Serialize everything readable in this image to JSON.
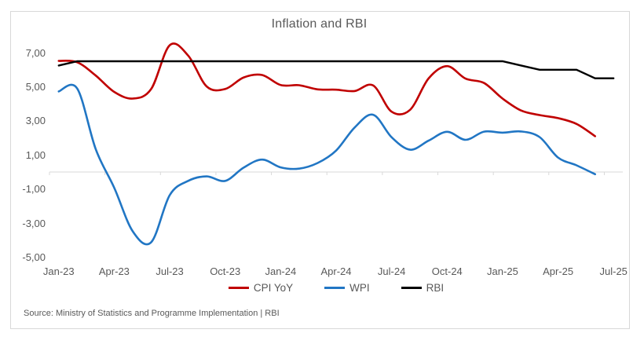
{
  "chart": {
    "title": "Inflation and RBI",
    "source_note": "Source: Ministry of Statistics and Programme Implementation | RBI"
  },
  "chart_data": {
    "type": "line",
    "title": "Inflation and RBI",
    "grid": false,
    "legend_position": "bottom",
    "ylim": [
      -5.6,
      7.6
    ],
    "y_ticks": [
      7,
      5,
      3,
      1,
      -1,
      -3,
      -5
    ],
    "y_tick_labels": [
      "7,00",
      "5,00",
      "3,00",
      "1,00",
      "-1,00",
      "-3,00",
      "-5,00"
    ],
    "x": [
      "Jan-23",
      "Feb-23",
      "Mar-23",
      "Apr-23",
      "May-23",
      "Jun-23",
      "Jul-23",
      "Aug-23",
      "Sep-23",
      "Oct-23",
      "Nov-23",
      "Dec-23",
      "Jan-24",
      "Feb-24",
      "Mar-24",
      "Apr-24",
      "May-24",
      "Jun-24",
      "Jul-24",
      "Aug-24",
      "Sep-24",
      "Oct-24",
      "Nov-24",
      "Dec-24",
      "Jan-25",
      "Feb-25",
      "Mar-25",
      "Apr-25",
      "May-25",
      "Jun-25",
      "Jul-25"
    ],
    "x_tick_labels": [
      "Jan-23",
      "Apr-23",
      "Jul-23",
      "Oct-23",
      "Jan-24",
      "Apr-24",
      "Jul-24",
      "Oct-24",
      "Jan-25",
      "Apr-25",
      "Jul-25"
    ],
    "x_tick_every": 3,
    "series": [
      {
        "name": "CPI YoY",
        "color": "#c00000",
        "smooth": true,
        "values": [
          6.52,
          6.44,
          5.66,
          4.7,
          4.31,
          4.87,
          7.44,
          6.83,
          5.02,
          4.87,
          5.55,
          5.69,
          5.1,
          5.09,
          4.85,
          4.83,
          4.75,
          5.08,
          3.54,
          3.65,
          5.49,
          6.21,
          5.48,
          5.22,
          4.31,
          3.61,
          3.34,
          3.16,
          2.82,
          2.1,
          null
        ]
      },
      {
        "name": "WPI",
        "color": "#2176c4",
        "smooth": true,
        "values": [
          4.73,
          4.9,
          1.34,
          -0.92,
          -3.48,
          -4.12,
          -1.36,
          -0.52,
          -0.26,
          -0.52,
          0.26,
          0.73,
          0.27,
          0.2,
          0.53,
          1.26,
          2.61,
          3.36,
          2.04,
          1.31,
          1.84,
          2.36,
          1.89,
          2.37,
          2.31,
          2.38,
          2.05,
          0.85,
          0.39,
          -0.13,
          null
        ]
      },
      {
        "name": "RBI",
        "color": "#000000",
        "smooth": false,
        "values": [
          6.25,
          6.5,
          6.5,
          6.5,
          6.5,
          6.5,
          6.5,
          6.5,
          6.5,
          6.5,
          6.5,
          6.5,
          6.5,
          6.5,
          6.5,
          6.5,
          6.5,
          6.5,
          6.5,
          6.5,
          6.5,
          6.5,
          6.5,
          6.5,
          6.5,
          6.25,
          6.0,
          6.0,
          6.0,
          5.5,
          5.5
        ]
      }
    ],
    "axis_color": "#d9d9d9",
    "text_color": "#595959"
  }
}
